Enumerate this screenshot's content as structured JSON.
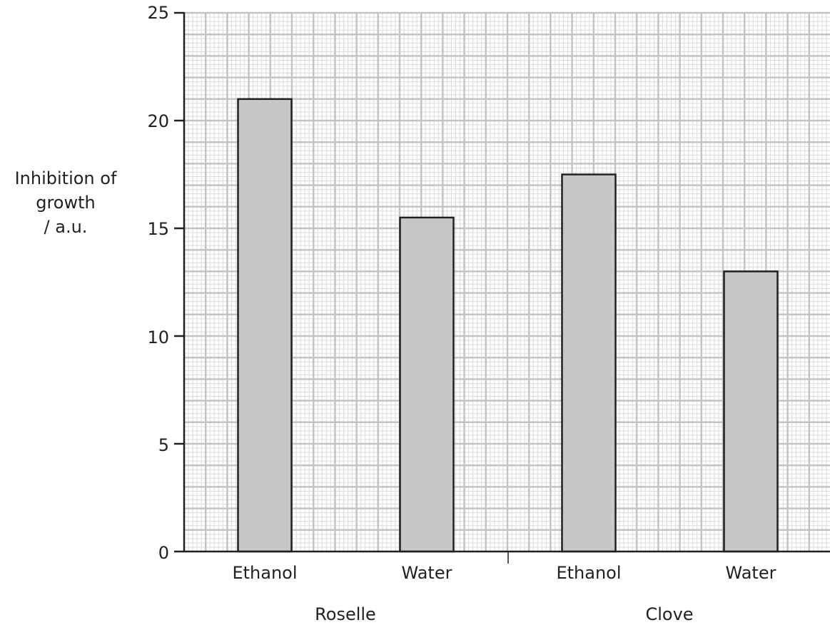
{
  "chart_data": {
    "type": "bar",
    "categories": [
      "Ethanol",
      "Water",
      "Ethanol",
      "Water"
    ],
    "groups": [
      {
        "label": "Roselle",
        "categories": [
          "Ethanol",
          "Water"
        ]
      },
      {
        "label": "Clove",
        "categories": [
          "Ethanol",
          "Water"
        ]
      }
    ],
    "values": [
      21,
      15.5,
      17.5,
      13
    ],
    "ylabel_lines": [
      "Inhibition of",
      "growth",
      "/ a.u."
    ],
    "ylim": [
      0,
      25
    ],
    "yticks": [
      "0",
      "5",
      "10",
      "15",
      "20",
      "25"
    ],
    "grid": true,
    "bar_color": "#c6c7c8",
    "grid_major_color": "#c4c4c4",
    "grid_minor_color": "#dcdcdc"
  }
}
